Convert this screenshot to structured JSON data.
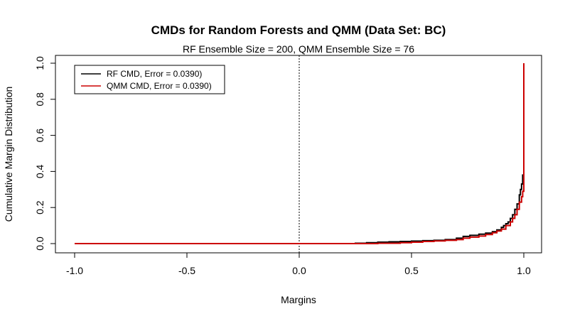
{
  "chart_data": {
    "type": "line",
    "title": "CMDs for Random Forests and QMM (Data Set: BC)",
    "subtitle": "RF Ensemble Size = 200, QMM Ensemble Size = 76",
    "xlabel": "Margins",
    "ylabel": "Cumulative Margin Distribution",
    "xlim": [
      -1.0,
      1.0
    ],
    "ylim": [
      0.0,
      1.0
    ],
    "x_ticks": [
      "-1.0",
      "-0.5",
      "0.0",
      "0.5",
      "1.0"
    ],
    "y_ticks": [
      "0.0",
      "0.2",
      "0.4",
      "0.6",
      "0.8",
      "1.0"
    ],
    "vline": 0.0,
    "legend_position": "top-left",
    "series": [
      {
        "name": "RF CMD, Error = 0.0390)",
        "color": "#000000",
        "x": [
          -1.0,
          0.25,
          0.3,
          0.35,
          0.4,
          0.45,
          0.5,
          0.55,
          0.6,
          0.65,
          0.7,
          0.73,
          0.76,
          0.8,
          0.83,
          0.86,
          0.88,
          0.9,
          0.91,
          0.92,
          0.93,
          0.94,
          0.95,
          0.96,
          0.97,
          0.98,
          0.985,
          0.99,
          0.995,
          1.0
        ],
        "y": [
          0.0,
          0.002,
          0.005,
          0.008,
          0.01,
          0.012,
          0.014,
          0.016,
          0.018,
          0.022,
          0.03,
          0.04,
          0.046,
          0.052,
          0.058,
          0.066,
          0.076,
          0.09,
          0.1,
          0.11,
          0.12,
          0.14,
          0.16,
          0.19,
          0.22,
          0.27,
          0.3,
          0.33,
          0.38,
          1.0
        ]
      },
      {
        "name": "QMM CMD, Error = 0.0390)",
        "color": "#cc0000",
        "x": [
          -1.0,
          0.25,
          0.35,
          0.45,
          0.5,
          0.55,
          0.6,
          0.65,
          0.7,
          0.73,
          0.76,
          0.8,
          0.83,
          0.86,
          0.88,
          0.9,
          0.92,
          0.94,
          0.95,
          0.96,
          0.97,
          0.98,
          0.99,
          0.995,
          1.0
        ],
        "y": [
          0.0,
          0.0,
          0.002,
          0.005,
          0.008,
          0.012,
          0.015,
          0.018,
          0.022,
          0.03,
          0.036,
          0.042,
          0.05,
          0.06,
          0.07,
          0.08,
          0.1,
          0.12,
          0.14,
          0.16,
          0.19,
          0.23,
          0.26,
          0.29,
          1.0
        ]
      }
    ]
  }
}
